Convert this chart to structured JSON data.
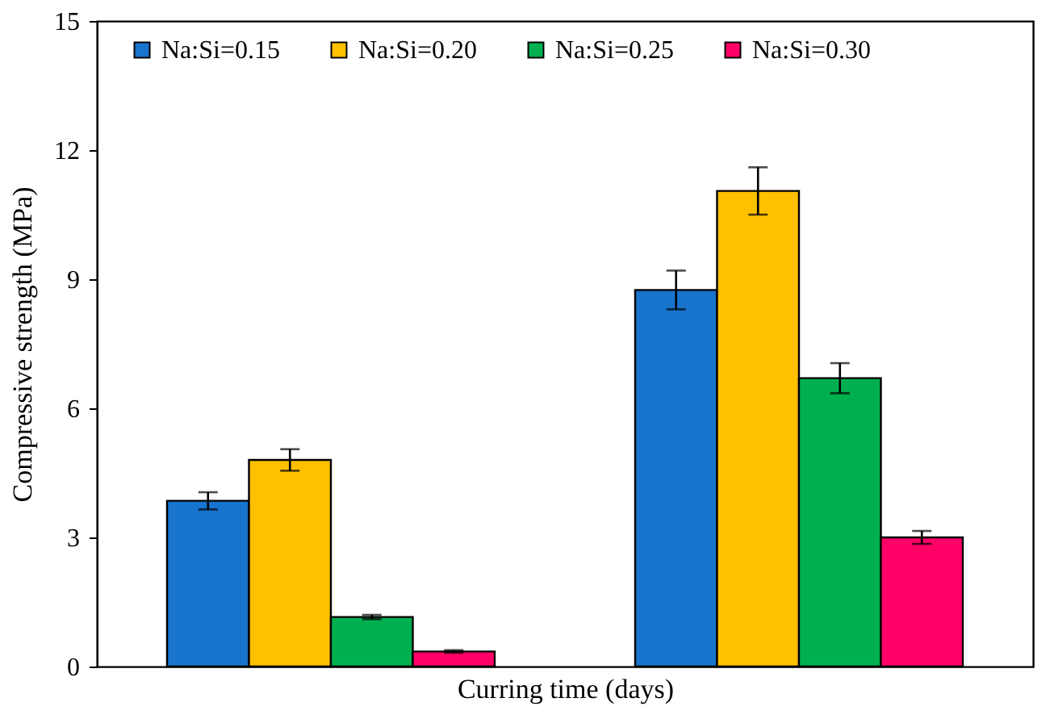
{
  "chart_data": {
    "type": "bar",
    "xlabel": "Curring time (days)",
    "ylabel": "Compressive strength (MPa)",
    "categories": [
      null,
      null
    ],
    "series": [
      {
        "name": "Na:Si=0.15",
        "color": "#1874cd",
        "values": [
          3.85,
          8.75
        ],
        "errors": [
          0.2,
          0.45
        ]
      },
      {
        "name": "Na:Si=0.20",
        "color": "#ffc000",
        "values": [
          4.8,
          11.05
        ],
        "errors": [
          0.25,
          0.55
        ]
      },
      {
        "name": "Na:Si=0.25",
        "color": "#00b050",
        "values": [
          1.15,
          6.7
        ],
        "errors": [
          0.05,
          0.35
        ]
      },
      {
        "name": "Na:Si=0.30",
        "color": "#ff0066",
        "values": [
          0.35,
          3.0
        ],
        "errors": [
          0.03,
          0.15
        ]
      }
    ],
    "ylim": [
      0,
      15
    ],
    "yticks": [
      0,
      3,
      6,
      9,
      12,
      15
    ],
    "grid": false,
    "legend": "top"
  }
}
